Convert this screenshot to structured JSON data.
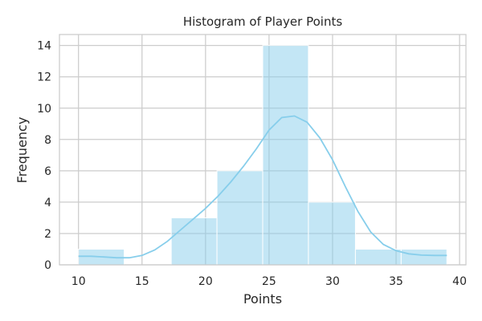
{
  "chart_data": {
    "type": "bar",
    "subtype": "histogram-with-kde",
    "title": "Histogram of Player Points",
    "xlabel": "Points",
    "ylabel": "Frequency",
    "xlim": [
      8.5,
      40.5
    ],
    "ylim": [
      0,
      14.7
    ],
    "x_ticks": [
      10,
      15,
      20,
      25,
      30,
      35,
      40
    ],
    "y_ticks": [
      0,
      2,
      4,
      6,
      8,
      10,
      12,
      14
    ],
    "grid": true,
    "bar_color": "#87CEEB",
    "bins": [
      {
        "x0": 10.0,
        "x1": 13.6,
        "count": 1
      },
      {
        "x0": 13.6,
        "x1": 17.3,
        "count": 0
      },
      {
        "x0": 17.3,
        "x1": 20.9,
        "count": 3
      },
      {
        "x0": 20.9,
        "x1": 24.5,
        "count": 6
      },
      {
        "x0": 24.5,
        "x1": 28.1,
        "count": 14
      },
      {
        "x0": 28.1,
        "x1": 31.8,
        "count": 4
      },
      {
        "x0": 31.8,
        "x1": 35.4,
        "count": 1
      },
      {
        "x0": 35.4,
        "x1": 39.0,
        "count": 1
      }
    ],
    "kde": {
      "x": [
        10,
        11,
        12,
        13,
        14,
        15,
        16,
        17,
        18,
        19,
        20,
        21,
        22,
        23,
        24,
        25,
        26,
        27,
        28,
        29,
        30,
        31,
        32,
        33,
        34,
        35,
        36,
        37,
        38,
        39
      ],
      "y": [
        0.55,
        0.55,
        0.5,
        0.45,
        0.45,
        0.6,
        0.95,
        1.5,
        2.2,
        2.9,
        3.6,
        4.4,
        5.3,
        6.3,
        7.4,
        8.6,
        9.4,
        9.5,
        9.1,
        8.1,
        6.7,
        5.0,
        3.4,
        2.1,
        1.3,
        0.9,
        0.7,
        0.62,
        0.6,
        0.6
      ]
    }
  }
}
